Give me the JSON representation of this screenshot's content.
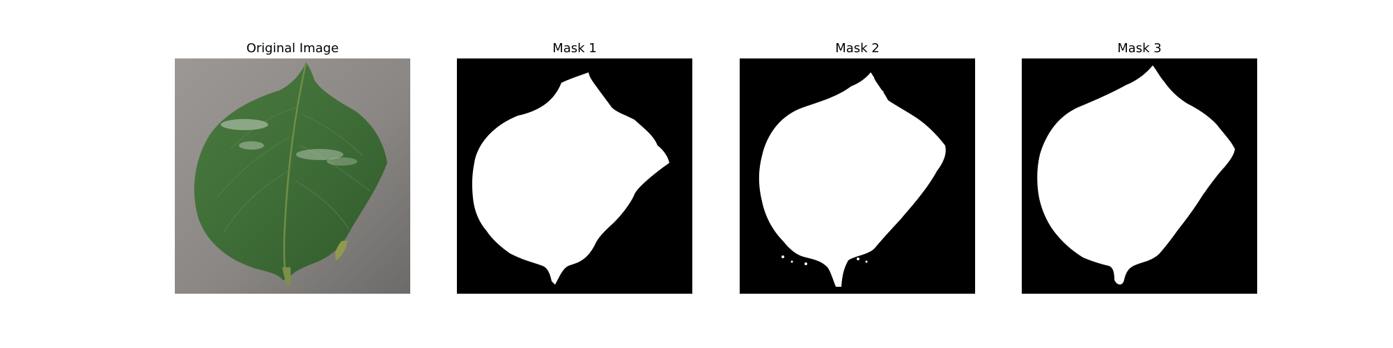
{
  "figure": {
    "panels": [
      {
        "title": "Original Image",
        "content": "leaf-photo-icon"
      },
      {
        "title": "Mask 1",
        "content": "binary-mask"
      },
      {
        "title": "Mask 2",
        "content": "binary-mask"
      },
      {
        "title": "Mask 3",
        "content": "binary-mask"
      }
    ]
  },
  "colors": {
    "background": "#ffffff",
    "mask_background": "#000000",
    "mask_foreground": "#ffffff",
    "leaf_green": "#3e6b35",
    "surface_gray": "#8f8c89"
  }
}
